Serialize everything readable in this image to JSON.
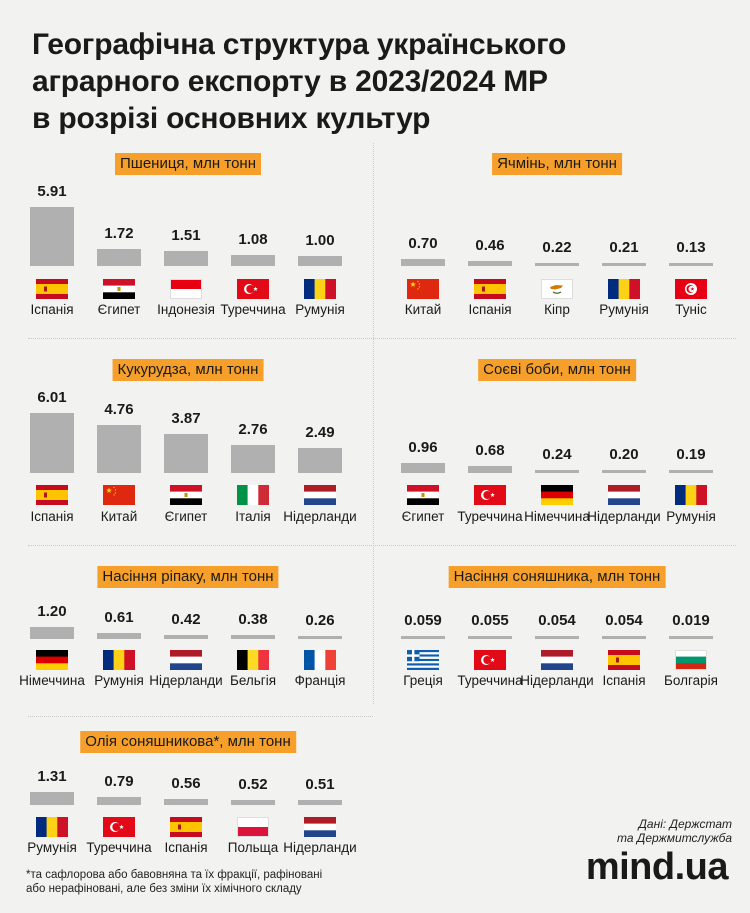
{
  "title_lines": [
    "Географічна структура українського",
    "аграрного експорту в 2023/2024 МР",
    "в розрізі основних культур"
  ],
  "colors": {
    "accent": "#f6a02b",
    "bar": "#b0b0b0",
    "background": "#f2f2f0"
  },
  "chart_data": [
    {
      "type": "bar",
      "title": "Пшениця, млн тонн",
      "max": 6.01,
      "categories": [
        "Іспанія",
        "Єгипет",
        "Індонезія",
        "Туреччина",
        "Румунія"
      ],
      "labels": [
        "5.91",
        "1.72",
        "1.51",
        "1.08",
        "1.00"
      ],
      "values": [
        5.91,
        1.72,
        1.51,
        1.08,
        1.0
      ],
      "flags": [
        "es",
        "eg",
        "id",
        "tr",
        "ro"
      ]
    },
    {
      "type": "bar",
      "title": "Ячмінь, млн тонн",
      "max": 6.01,
      "categories": [
        "Китай",
        "Іспанія",
        "Кіпр",
        "Румунія",
        "Туніс"
      ],
      "labels": [
        "0.70",
        "0.46",
        "0.22",
        "0.21",
        "0.13"
      ],
      "values": [
        0.7,
        0.46,
        0.22,
        0.21,
        0.13
      ],
      "flags": [
        "cn",
        "es",
        "cy",
        "ro",
        "tn"
      ]
    },
    {
      "type": "bar",
      "title": "Кукурудза, млн тонн",
      "max": 6.01,
      "categories": [
        "Іспанія",
        "Китай",
        "Єгипет",
        "Італія",
        "Нідерланди"
      ],
      "labels": [
        "6.01",
        "4.76",
        "3.87",
        "2.76",
        "2.49"
      ],
      "values": [
        6.01,
        4.76,
        3.87,
        2.76,
        2.49
      ],
      "flags": [
        "es",
        "cn",
        "eg",
        "it",
        "nl"
      ]
    },
    {
      "type": "bar",
      "title": "Соєві боби, млн тонн",
      "max": 6.01,
      "categories": [
        "Єгипет",
        "Туреччина",
        "Німеччина",
        "Нідерланди",
        "Румунія"
      ],
      "labels": [
        "0.96",
        "0.68",
        "0.24",
        "0.20",
        "0.19"
      ],
      "values": [
        0.96,
        0.68,
        0.24,
        0.2,
        0.19
      ],
      "flags": [
        "eg",
        "tr",
        "de",
        "nl",
        "ro"
      ]
    },
    {
      "type": "bar",
      "title": "Насіння ріпаку, млн тонн",
      "max": 6.01,
      "categories": [
        "Німеччина",
        "Румунія",
        "Нідерланди",
        "Бельгія",
        "Франція"
      ],
      "labels": [
        "1.20",
        "0.61",
        "0.42",
        "0.38",
        "0.26"
      ],
      "values": [
        1.2,
        0.61,
        0.42,
        0.38,
        0.26
      ],
      "flags": [
        "de",
        "ro",
        "nl",
        "be",
        "fr"
      ]
    },
    {
      "type": "bar",
      "title": "Насіння соняшника, млн тонн",
      "max": 6.01,
      "categories": [
        "Греція",
        "Туреччина",
        "Нідерланди",
        "Іспанія",
        "Болгарія"
      ],
      "labels": [
        "0.059",
        "0.055",
        "0.054",
        "0.054",
        "0.019"
      ],
      "values": [
        0.059,
        0.055,
        0.054,
        0.054,
        0.019
      ],
      "flags": [
        "gr",
        "tr",
        "nl",
        "es",
        "bg"
      ]
    },
    {
      "type": "bar",
      "title": "Олія соняшникова*, млн тонн",
      "max": 6.01,
      "categories": [
        "Румунія",
        "Туреччина",
        "Іспанія",
        "Польща",
        "Нідерланди"
      ],
      "labels": [
        "1.31",
        "0.79",
        "0.56",
        "0.52",
        "0.51"
      ],
      "values": [
        1.31,
        0.79,
        0.56,
        0.52,
        0.51
      ],
      "flags": [
        "ro",
        "tr",
        "es",
        "pl",
        "nl"
      ]
    }
  ],
  "note_lines": [
    "*та сафлорова або бавовняна та їх фракції, рафіновані",
    "або нерафіновані, але без зміни їх хімічного складу"
  ],
  "source_lines": [
    "Дані: Держстат",
    "та Держмитслужба"
  ],
  "logo": "mind.ua"
}
